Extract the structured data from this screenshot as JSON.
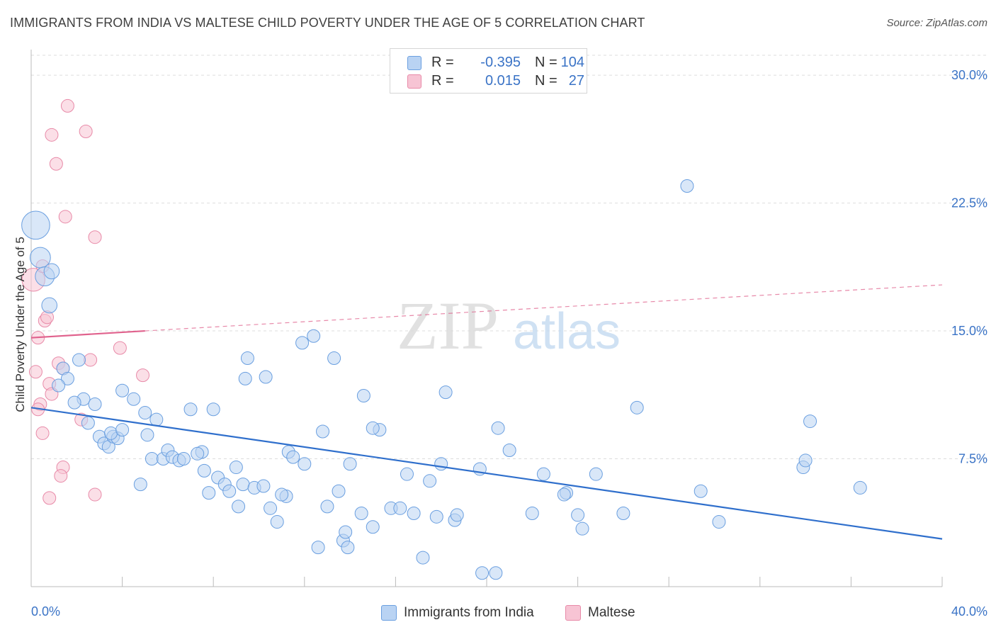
{
  "header": {
    "title": "IMMIGRANTS FROM INDIA VS MALTESE CHILD POVERTY UNDER THE AGE OF 5 CORRELATION CHART",
    "source": "Source: ZipAtlas.com"
  },
  "legend_top": {
    "rows": [
      {
        "r_label": "R =",
        "r_value": "-0.395",
        "n_label": "N =",
        "n_value": "104"
      },
      {
        "r_label": "R =",
        "r_value": "0.015",
        "n_label": "N =",
        "n_value": "27"
      }
    ]
  },
  "colors": {
    "india_fill": "#b9d3f3",
    "india_stroke": "#6a9fe0",
    "india_line": "#2f6fcc",
    "maltese_fill": "#f7c4d4",
    "maltese_stroke": "#e88aa8",
    "maltese_line": "#e0628d",
    "grid": "#dddddd",
    "axis_label": "#3a73c6"
  },
  "watermark": {
    "part1": "ZIP",
    "part2": "atlas"
  },
  "chart_data": {
    "type": "scatter",
    "title": "IMMIGRANTS FROM INDIA VS MALTESE CHILD POVERTY UNDER THE AGE OF 5 CORRELATION CHART",
    "xlabel": "",
    "ylabel": "Child Poverty Under the Age of 5",
    "xlim": [
      0,
      40
    ],
    "ylim": [
      0,
      31.5
    ],
    "x_tick_labels": [
      "0.0%",
      "40.0%"
    ],
    "y_ticks": [
      7.5,
      15.0,
      22.5,
      30.0
    ],
    "y_tick_labels": [
      "7.5%",
      "15.0%",
      "22.5%",
      "30.0%"
    ],
    "grid": true,
    "legend_position": "bottom",
    "series": [
      {
        "name": "Immigrants from India",
        "r": -0.395,
        "n": 104,
        "trend": {
          "x": [
            0,
            40
          ],
          "y": [
            10.5,
            2.8
          ],
          "style": "solid"
        },
        "points": [
          [
            0.2,
            21.2,
            2.2
          ],
          [
            0.4,
            19.3,
            1.6
          ],
          [
            0.6,
            18.2,
            1.5
          ],
          [
            0.9,
            18.5,
            1.2
          ],
          [
            0.8,
            16.5,
            1.2
          ],
          [
            2.1,
            13.3,
            1.0
          ],
          [
            1.4,
            12.8,
            1.0
          ],
          [
            1.6,
            12.2,
            1.0
          ],
          [
            1.2,
            11.8,
            1.0
          ],
          [
            2.3,
            11.0,
            1.0
          ],
          [
            1.9,
            10.8,
            1.0
          ],
          [
            2.8,
            10.7,
            1.0
          ],
          [
            2.5,
            9.6,
            1.0
          ],
          [
            3.0,
            8.8,
            1.0
          ],
          [
            3.2,
            8.4,
            1.0
          ],
          [
            3.4,
            8.2,
            1.0
          ],
          [
            3.6,
            8.8,
            1.0
          ],
          [
            3.8,
            8.7,
            1.0
          ],
          [
            3.5,
            9.0,
            1.0
          ],
          [
            4.0,
            9.2,
            1.0
          ],
          [
            4.5,
            11.0,
            1.0
          ],
          [
            4.0,
            11.5,
            1.0
          ],
          [
            5.0,
            10.2,
            1.0
          ],
          [
            5.5,
            9.8,
            1.0
          ],
          [
            5.1,
            8.9,
            1.0
          ],
          [
            5.3,
            7.5,
            1.0
          ],
          [
            5.8,
            7.5,
            1.0
          ],
          [
            6.0,
            8.0,
            1.0
          ],
          [
            6.2,
            7.6,
            1.0
          ],
          [
            6.5,
            7.4,
            1.0
          ],
          [
            6.7,
            7.5,
            1.0
          ],
          [
            7.0,
            10.4,
            1.0
          ],
          [
            7.5,
            7.9,
            1.0
          ],
          [
            7.3,
            7.8,
            1.0
          ],
          [
            8.0,
            10.4,
            1.0
          ],
          [
            4.8,
            6.0,
            1.0
          ],
          [
            7.8,
            5.5,
            1.0
          ],
          [
            7.6,
            6.8,
            1.0
          ],
          [
            8.2,
            6.4,
            1.0
          ],
          [
            8.5,
            6.0,
            1.0
          ],
          [
            8.7,
            5.6,
            1.0
          ],
          [
            9.0,
            7.0,
            1.0
          ],
          [
            9.3,
            6.0,
            1.0
          ],
          [
            9.1,
            4.7,
            1.0
          ],
          [
            9.8,
            5.8,
            1.0
          ],
          [
            10.2,
            5.9,
            1.0
          ],
          [
            10.5,
            4.6,
            1.0
          ],
          [
            10.8,
            3.8,
            1.0
          ],
          [
            9.5,
            13.4,
            1.0
          ],
          [
            9.4,
            12.2,
            1.0
          ],
          [
            10.3,
            12.3,
            1.0
          ],
          [
            11.2,
            5.3,
            1.0
          ],
          [
            11.0,
            5.4,
            1.0
          ],
          [
            11.3,
            7.9,
            1.0
          ],
          [
            11.5,
            7.6,
            1.0
          ],
          [
            12.0,
            7.2,
            1.0
          ],
          [
            12.4,
            14.7,
            1.0
          ],
          [
            11.9,
            14.3,
            1.0
          ],
          [
            12.8,
            9.1,
            1.0
          ],
          [
            13.3,
            13.4,
            1.0
          ],
          [
            13.0,
            4.7,
            1.0
          ],
          [
            13.5,
            5.6,
            1.0
          ],
          [
            12.6,
            2.3,
            1.0
          ],
          [
            13.7,
            2.7,
            1.0
          ],
          [
            13.9,
            2.3,
            1.0
          ],
          [
            13.8,
            3.2,
            1.0
          ],
          [
            14.0,
            7.2,
            1.0
          ],
          [
            14.5,
            4.3,
            1.0
          ],
          [
            14.6,
            11.2,
            1.0
          ],
          [
            15.0,
            3.5,
            1.0
          ],
          [
            15.3,
            9.2,
            1.0
          ],
          [
            15.8,
            4.6,
            1.0
          ],
          [
            15.0,
            9.3,
            1.0
          ],
          [
            16.2,
            4.6,
            1.0
          ],
          [
            16.5,
            6.6,
            1.0
          ],
          [
            16.8,
            4.3,
            1.0
          ],
          [
            17.2,
            1.7,
            1.0
          ],
          [
            17.5,
            6.2,
            1.0
          ],
          [
            17.8,
            4.1,
            1.0
          ],
          [
            18.0,
            7.2,
            1.0
          ],
          [
            18.2,
            11.4,
            1.0
          ],
          [
            18.6,
            3.9,
            1.0
          ],
          [
            18.7,
            4.2,
            1.0
          ],
          [
            19.7,
            6.9,
            1.0
          ],
          [
            19.8,
            0.8,
            1.0
          ],
          [
            20.4,
            0.8,
            1.0
          ],
          [
            21.0,
            8.0,
            1.0
          ],
          [
            22.0,
            4.3,
            1.0
          ],
          [
            22.5,
            6.6,
            1.0
          ],
          [
            23.5,
            5.5,
            1.0
          ],
          [
            23.4,
            5.4,
            1.0
          ],
          [
            24.0,
            4.2,
            1.0
          ],
          [
            24.2,
            3.4,
            1.0
          ],
          [
            24.8,
            6.6,
            1.0
          ],
          [
            26.0,
            4.3,
            1.0
          ],
          [
            26.6,
            10.5,
            1.0
          ],
          [
            28.8,
            23.5,
            1.0
          ],
          [
            29.4,
            5.6,
            1.0
          ],
          [
            30.2,
            3.8,
            1.0
          ],
          [
            33.9,
            7.0,
            1.0
          ],
          [
            34.0,
            7.4,
            1.0
          ],
          [
            34.2,
            9.7,
            1.0
          ],
          [
            36.4,
            5.8,
            1.0
          ],
          [
            20.5,
            9.3,
            1.0
          ]
        ]
      },
      {
        "name": "Maltese",
        "r": 0.015,
        "n": 27,
        "trend": {
          "x": [
            0,
            5
          ],
          "y": [
            14.6,
            15.0
          ],
          "style": "solid",
          "extended": {
            "x": [
              5,
              40
            ],
            "y": [
              15.0,
              17.7
            ],
            "style": "dashed"
          }
        },
        "points": [
          [
            0.1,
            18.0,
            1.8
          ],
          [
            0.5,
            18.8,
            1.0
          ],
          [
            0.3,
            14.6,
            1.0
          ],
          [
            0.6,
            15.6,
            1.0
          ],
          [
            0.7,
            15.8,
            1.0
          ],
          [
            0.2,
            12.6,
            1.0
          ],
          [
            0.4,
            10.7,
            1.0
          ],
          [
            0.3,
            10.4,
            1.0
          ],
          [
            0.5,
            9.0,
            1.0
          ],
          [
            0.8,
            11.9,
            1.0
          ],
          [
            0.9,
            11.3,
            1.0
          ],
          [
            1.2,
            13.1,
            1.0
          ],
          [
            1.4,
            12.8,
            1.0
          ],
          [
            1.4,
            7.0,
            1.0
          ],
          [
            1.3,
            6.5,
            1.0
          ],
          [
            0.8,
            5.2,
            1.0
          ],
          [
            2.2,
            9.8,
            1.0
          ],
          [
            2.6,
            13.3,
            1.0
          ],
          [
            2.8,
            5.4,
            1.0
          ],
          [
            3.9,
            14.0,
            1.0
          ],
          [
            4.9,
            12.4,
            1.0
          ],
          [
            0.9,
            26.5,
            1.0
          ],
          [
            1.1,
            24.8,
            1.0
          ],
          [
            1.6,
            28.2,
            1.0
          ],
          [
            2.4,
            26.7,
            1.0
          ],
          [
            1.5,
            21.7,
            1.0
          ],
          [
            2.8,
            20.5,
            1.0
          ]
        ]
      }
    ]
  },
  "bottom_legend": {
    "items": [
      {
        "label": "Immigrants from India"
      },
      {
        "label": "Maltese"
      }
    ]
  }
}
